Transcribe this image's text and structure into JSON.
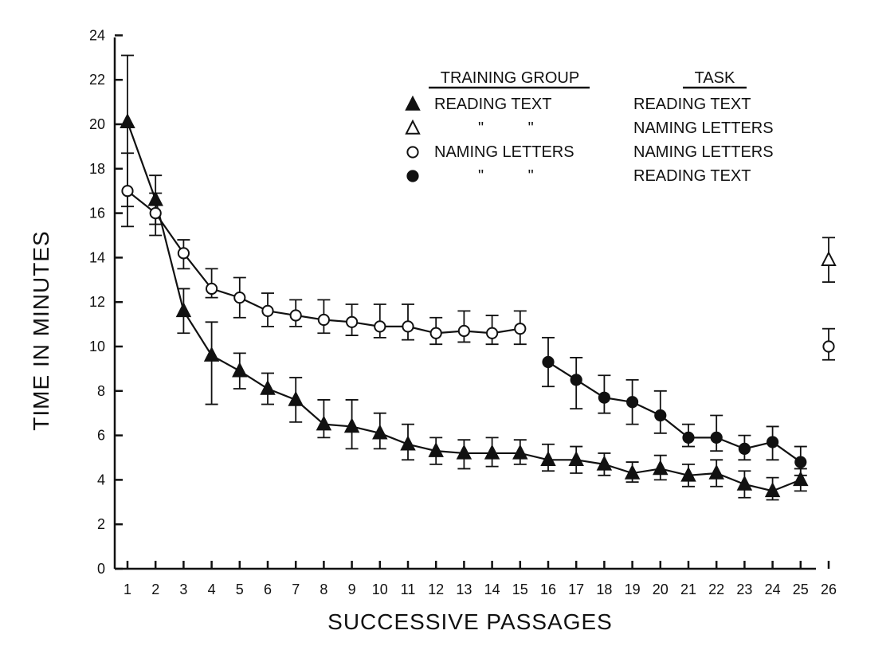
{
  "chart_data": {
    "type": "line",
    "xlabel": "SUCCESSIVE PASSAGES",
    "ylabel": "TIME IN MINUTES",
    "x_ticks": [
      "1",
      "2",
      "3",
      "4",
      "5",
      "6",
      "7",
      "8",
      "9",
      "10",
      "11",
      "12",
      "13",
      "14",
      "15",
      "16",
      "17",
      "18",
      "19",
      "20",
      "21",
      "22",
      "23",
      "24",
      "25",
      "26"
    ],
    "y_ticks": [
      "0",
      "2",
      "4",
      "6",
      "8",
      "10",
      "12",
      "14",
      "16",
      "18",
      "20",
      "22",
      "24"
    ],
    "xlim": [
      0.5,
      26.5
    ],
    "ylim": [
      0,
      24
    ],
    "grid": false,
    "legend": {
      "placement": "top-right",
      "headers": {
        "training_group": "TRAINING GROUP",
        "task": "TASK"
      },
      "rows": [
        {
          "symbol": "filled-triangle",
          "training_group": "READING TEXT",
          "task": "READING TEXT"
        },
        {
          "symbol": "open-triangle",
          "training_group": "\"          \"",
          "task": "NAMING LETTERS"
        },
        {
          "symbol": "open-circle",
          "training_group": "NAMING LETTERS",
          "task": "NAMING LETTERS"
        },
        {
          "symbol": "filled-circle",
          "training_group": "\"          \"",
          "task": "READING TEXT"
        }
      ]
    },
    "series": [
      {
        "marker": "filled-triangle",
        "color": "#111111",
        "points": [
          {
            "x": 1,
            "y": 20.1,
            "lo": 16.3,
            "hi": 23.1
          },
          {
            "x": 2,
            "y": 16.6,
            "lo": 15.5,
            "hi": 17.7
          },
          {
            "x": 3,
            "y": 11.6,
            "lo": 10.6,
            "hi": 12.6
          },
          {
            "x": 4,
            "y": 9.6,
            "lo": 7.4,
            "hi": 11.1
          },
          {
            "x": 5,
            "y": 8.9,
            "lo": 8.1,
            "hi": 9.7
          },
          {
            "x": 6,
            "y": 8.1,
            "lo": 7.4,
            "hi": 8.8
          },
          {
            "x": 7,
            "y": 7.6,
            "lo": 6.6,
            "hi": 8.6
          },
          {
            "x": 8,
            "y": 6.5,
            "lo": 5.9,
            "hi": 7.6
          },
          {
            "x": 9,
            "y": 6.4,
            "lo": 5.4,
            "hi": 7.6
          },
          {
            "x": 10,
            "y": 6.1,
            "lo": 5.4,
            "hi": 7.0
          },
          {
            "x": 11,
            "y": 5.6,
            "lo": 4.9,
            "hi": 6.5
          },
          {
            "x": 12,
            "y": 5.3,
            "lo": 4.7,
            "hi": 5.9
          },
          {
            "x": 13,
            "y": 5.2,
            "lo": 4.5,
            "hi": 5.8
          },
          {
            "x": 14,
            "y": 5.2,
            "lo": 4.6,
            "hi": 5.9
          },
          {
            "x": 15,
            "y": 5.2,
            "lo": 4.7,
            "hi": 5.8
          },
          {
            "x": 16,
            "y": 4.9,
            "lo": 4.4,
            "hi": 5.6
          },
          {
            "x": 17,
            "y": 4.9,
            "lo": 4.3,
            "hi": 5.5
          },
          {
            "x": 18,
            "y": 4.7,
            "lo": 4.2,
            "hi": 5.2
          },
          {
            "x": 19,
            "y": 4.3,
            "lo": 3.9,
            "hi": 4.8
          },
          {
            "x": 20,
            "y": 4.5,
            "lo": 4.0,
            "hi": 5.1
          },
          {
            "x": 21,
            "y": 4.2,
            "lo": 3.7,
            "hi": 4.7
          },
          {
            "x": 22,
            "y": 4.3,
            "lo": 3.7,
            "hi": 4.9
          },
          {
            "x": 23,
            "y": 3.8,
            "lo": 3.2,
            "hi": 4.4
          },
          {
            "x": 24,
            "y": 3.5,
            "lo": 3.1,
            "hi": 4.1
          },
          {
            "x": 25,
            "y": 4.0,
            "lo": 3.5,
            "hi": 4.5
          }
        ]
      },
      {
        "marker": "open-circle",
        "color": "#111111",
        "points": [
          {
            "x": 1,
            "y": 17.0,
            "lo": 15.4,
            "hi": 18.7
          },
          {
            "x": 2,
            "y": 16.0,
            "lo": 15.0,
            "hi": 16.9
          },
          {
            "x": 3,
            "y": 14.2,
            "lo": 13.5,
            "hi": 14.8
          },
          {
            "x": 4,
            "y": 12.6,
            "lo": 12.2,
            "hi": 13.5
          },
          {
            "x": 5,
            "y": 12.2,
            "lo": 11.3,
            "hi": 13.1
          },
          {
            "x": 6,
            "y": 11.6,
            "lo": 10.9,
            "hi": 12.4
          },
          {
            "x": 7,
            "y": 11.4,
            "lo": 10.9,
            "hi": 12.1
          },
          {
            "x": 8,
            "y": 11.2,
            "lo": 10.6,
            "hi": 12.1
          },
          {
            "x": 9,
            "y": 11.1,
            "lo": 10.5,
            "hi": 11.9
          },
          {
            "x": 10,
            "y": 10.9,
            "lo": 10.4,
            "hi": 11.9
          },
          {
            "x": 11,
            "y": 10.9,
            "lo": 10.3,
            "hi": 11.9
          },
          {
            "x": 12,
            "y": 10.6,
            "lo": 10.1,
            "hi": 11.3
          },
          {
            "x": 13,
            "y": 10.7,
            "lo": 10.2,
            "hi": 11.6
          },
          {
            "x": 14,
            "y": 10.6,
            "lo": 10.1,
            "hi": 11.4
          },
          {
            "x": 15,
            "y": 10.8,
            "lo": 10.1,
            "hi": 11.6
          }
        ]
      },
      {
        "marker": "filled-circle",
        "color": "#111111",
        "points": [
          {
            "x": 16,
            "y": 9.3,
            "lo": 8.2,
            "hi": 10.4
          },
          {
            "x": 17,
            "y": 8.5,
            "lo": 7.2,
            "hi": 9.5
          },
          {
            "x": 18,
            "y": 7.7,
            "lo": 7.0,
            "hi": 8.7
          },
          {
            "x": 19,
            "y": 7.5,
            "lo": 6.5,
            "hi": 8.5
          },
          {
            "x": 20,
            "y": 6.9,
            "lo": 6.1,
            "hi": 8.0
          },
          {
            "x": 21,
            "y": 5.9,
            "lo": 5.5,
            "hi": 6.5
          },
          {
            "x": 22,
            "y": 5.9,
            "lo": 5.3,
            "hi": 6.9
          },
          {
            "x": 23,
            "y": 5.4,
            "lo": 4.9,
            "hi": 6.0
          },
          {
            "x": 24,
            "y": 5.7,
            "lo": 4.9,
            "hi": 6.4
          },
          {
            "x": 25,
            "y": 4.8,
            "lo": 4.2,
            "hi": 5.5
          }
        ]
      },
      {
        "marker": "open-triangle",
        "color": "#111111",
        "points": [
          {
            "x": 26,
            "y": 13.9,
            "lo": 12.9,
            "hi": 14.9
          }
        ]
      },
      {
        "marker": "open-circle",
        "color": "#111111",
        "points": [
          {
            "x": 26,
            "y": 10.0,
            "lo": 9.4,
            "hi": 10.8
          }
        ]
      }
    ]
  }
}
